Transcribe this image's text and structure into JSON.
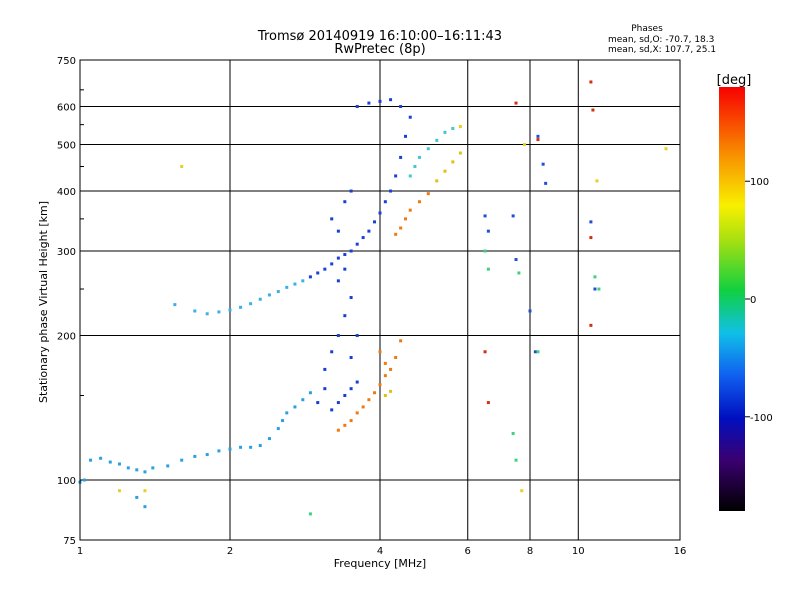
{
  "chart_data": {
    "type": "scatter",
    "title": "Tromsø 20140919 16:10:00–16:11:43",
    "subtitle": "RwPretec (8p)",
    "xlabel": "Frequency [MHz]",
    "ylabel": "Stationary phase Virtual Height [km]",
    "x_scale": "log2",
    "y_scale": "log",
    "xlim": [
      1,
      16
    ],
    "ylim": [
      75,
      750
    ],
    "x_ticks": [
      {
        "value": 1,
        "label": "1"
      },
      {
        "value": 2,
        "label": "2"
      },
      {
        "value": 4,
        "label": "4"
      },
      {
        "value": 6,
        "label": "6"
      },
      {
        "value": 8,
        "label": "8"
      },
      {
        "value": 10,
        "label": "10"
      },
      {
        "value": 16,
        "label": "16"
      }
    ],
    "y_ticks": [
      {
        "value": 75,
        "label": "75"
      },
      {
        "value": 100,
        "label": "100"
      },
      {
        "value": 200,
        "label": "200"
      },
      {
        "value": 300,
        "label": "300"
      },
      {
        "value": 400,
        "label": "400"
      },
      {
        "value": 500,
        "label": "500"
      },
      {
        "value": 600,
        "label": "600"
      },
      {
        "value": 750,
        "label": "750"
      }
    ],
    "grid": true,
    "stats": {
      "heading": "Phases",
      "line_o": "mean, sd,O: -70.7, 18.3",
      "line_x": "mean, sd,X: 107.7, 25.1"
    },
    "colorbar": {
      "label": "[deg]",
      "range": [
        -180,
        180
      ],
      "ticks": [
        {
          "value": 100,
          "label": "100"
        },
        {
          "value": 0,
          "label": "0"
        },
        {
          "value": -100,
          "label": "-100"
        }
      ]
    },
    "series": [
      {
        "color": "#2aa0e0",
        "phase": -80,
        "points": [
          [
            1.0,
            99
          ],
          [
            1.02,
            100
          ],
          [
            1.05,
            110
          ],
          [
            1.1,
            111
          ],
          [
            1.15,
            109
          ],
          [
            1.2,
            108
          ],
          [
            1.25,
            106
          ],
          [
            1.3,
            105
          ],
          [
            1.35,
            104
          ],
          [
            1.4,
            106
          ],
          [
            1.5,
            107
          ],
          [
            1.6,
            110
          ],
          [
            1.7,
            112
          ],
          [
            1.8,
            113
          ],
          [
            1.9,
            115
          ],
          [
            2.0,
            116
          ],
          [
            2.1,
            117
          ],
          [
            2.2,
            117
          ],
          [
            2.3,
            118
          ],
          [
            2.4,
            122
          ],
          [
            2.5,
            128
          ],
          [
            2.55,
            133
          ],
          [
            2.6,
            138
          ],
          [
            2.7,
            142
          ],
          [
            2.8,
            147
          ],
          [
            2.9,
            152
          ],
          [
            1.35,
            88
          ],
          [
            1.3,
            92
          ]
        ]
      },
      {
        "color": "#3bb0e8",
        "phase": -70,
        "points": [
          [
            1.7,
            225
          ],
          [
            1.8,
            222
          ],
          [
            1.9,
            224
          ],
          [
            2.0,
            226
          ],
          [
            2.1,
            229
          ],
          [
            2.2,
            233
          ],
          [
            2.3,
            238
          ],
          [
            2.4,
            243
          ],
          [
            2.5,
            247
          ],
          [
            2.6,
            252
          ],
          [
            2.7,
            256
          ],
          [
            2.8,
            260
          ],
          [
            1.55,
            232
          ]
        ]
      },
      {
        "color": "#1a40d8",
        "phase": -110,
        "points": [
          [
            2.9,
            265
          ],
          [
            3.0,
            270
          ],
          [
            3.1,
            275
          ],
          [
            3.2,
            282
          ],
          [
            3.3,
            290
          ],
          [
            3.4,
            295
          ],
          [
            3.5,
            300
          ],
          [
            3.6,
            310
          ],
          [
            3.7,
            320
          ],
          [
            3.8,
            330
          ],
          [
            3.9,
            345
          ],
          [
            4.0,
            360
          ],
          [
            4.1,
            380
          ],
          [
            4.2,
            400
          ],
          [
            4.3,
            430
          ],
          [
            4.4,
            470
          ],
          [
            4.5,
            520
          ],
          [
            4.6,
            570
          ],
          [
            4.4,
            600
          ],
          [
            4.2,
            620
          ],
          [
            4.0,
            615
          ],
          [
            3.8,
            610
          ],
          [
            3.6,
            600
          ]
        ]
      },
      {
        "color": "#1840d0",
        "phase": -115,
        "points": [
          [
            3.2,
            140
          ],
          [
            3.3,
            145
          ],
          [
            3.4,
            150
          ],
          [
            3.5,
            155
          ],
          [
            3.6,
            160
          ],
          [
            3.1,
            170
          ],
          [
            3.2,
            185
          ],
          [
            3.3,
            200
          ],
          [
            3.4,
            220
          ],
          [
            3.5,
            240
          ],
          [
            3.3,
            260
          ],
          [
            3.4,
            275
          ],
          [
            3.5,
            180
          ],
          [
            3.6,
            200
          ],
          [
            3.1,
            155
          ],
          [
            3.0,
            145
          ],
          [
            3.2,
            350
          ],
          [
            3.4,
            380
          ],
          [
            3.5,
            400
          ],
          [
            3.3,
            330
          ]
        ]
      },
      {
        "color": "#f07a10",
        "phase": 140,
        "points": [
          [
            3.3,
            127
          ],
          [
            3.4,
            130
          ],
          [
            3.5,
            133
          ],
          [
            3.6,
            138
          ],
          [
            3.7,
            142
          ],
          [
            3.8,
            147
          ],
          [
            3.9,
            152
          ],
          [
            4.0,
            158
          ],
          [
            4.1,
            165
          ],
          [
            4.2,
            170
          ],
          [
            4.3,
            180
          ],
          [
            4.4,
            195
          ],
          [
            4.0,
            185
          ],
          [
            4.1,
            175
          ],
          [
            4.3,
            325
          ],
          [
            4.4,
            335
          ],
          [
            4.5,
            350
          ],
          [
            4.6,
            365
          ],
          [
            4.8,
            380
          ],
          [
            5.0,
            395
          ]
        ]
      },
      {
        "color": "#e0c010",
        "phase": 100,
        "points": [
          [
            5.2,
            420
          ],
          [
            5.4,
            440
          ],
          [
            5.6,
            460
          ],
          [
            5.8,
            480
          ],
          [
            4.1,
            150
          ],
          [
            4.2,
            153
          ]
        ]
      },
      {
        "color": "#40c8d0",
        "phase": -40,
        "points": [
          [
            4.8,
            470
          ],
          [
            5.0,
            490
          ],
          [
            5.2,
            510
          ],
          [
            5.4,
            530
          ],
          [
            5.6,
            540
          ],
          [
            4.6,
            430
          ],
          [
            4.7,
            450
          ]
        ]
      },
      {
        "color": "#d03010",
        "phase": 160,
        "points": [
          [
            6.5,
            185
          ],
          [
            6.6,
            145
          ],
          [
            7.5,
            610
          ],
          [
            10.6,
            675
          ],
          [
            10.6,
            320
          ],
          [
            10.6,
            210
          ],
          [
            10.7,
            590
          ],
          [
            8.3,
            512
          ]
        ]
      },
      {
        "color": "#2050d0",
        "phase": -110,
        "points": [
          [
            6.5,
            355
          ],
          [
            6.6,
            330
          ],
          [
            7.4,
            355
          ],
          [
            7.5,
            288
          ],
          [
            8.3,
            520
          ],
          [
            8.5,
            455
          ],
          [
            8.6,
            415
          ],
          [
            10.6,
            345
          ],
          [
            10.8,
            250
          ],
          [
            8.0,
            225
          ],
          [
            8.2,
            185
          ]
        ]
      },
      {
        "color": "#40d080",
        "phase": 20,
        "points": [
          [
            6.5,
            300
          ],
          [
            6.6,
            275
          ],
          [
            7.6,
            270
          ],
          [
            8.3,
            185
          ],
          [
            10.8,
            265
          ],
          [
            11.0,
            250
          ],
          [
            7.4,
            125
          ],
          [
            7.5,
            110
          ],
          [
            2.9,
            85
          ]
        ]
      },
      {
        "color": "#e8d020",
        "phase": 100,
        "points": [
          [
            1.6,
            450
          ],
          [
            1.2,
            95
          ],
          [
            1.35,
            95
          ],
          [
            5.8,
            545
          ],
          [
            15.0,
            490
          ],
          [
            10.9,
            420
          ],
          [
            7.8,
            500
          ],
          [
            7.7,
            95
          ]
        ]
      }
    ]
  }
}
